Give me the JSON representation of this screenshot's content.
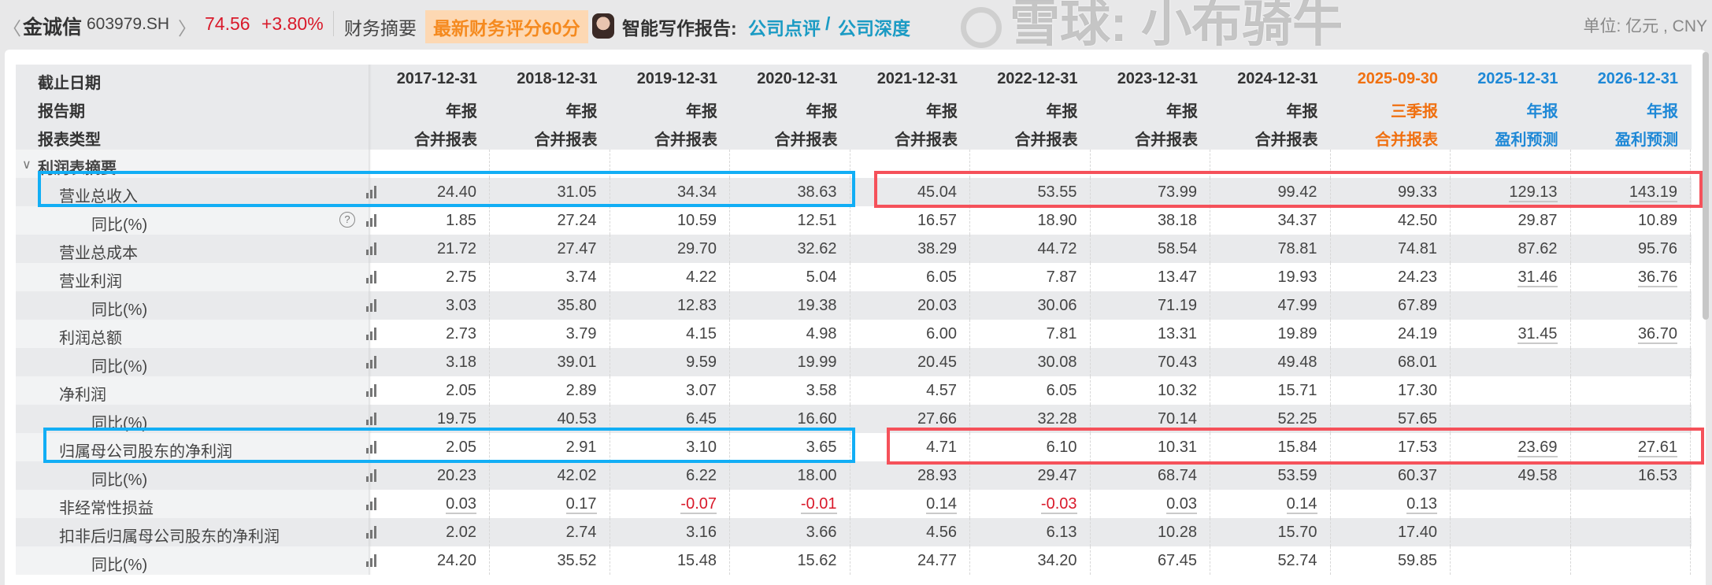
{
  "topbar": {
    "prev": "〈",
    "company": "金诚信",
    "code": "603979.SH",
    "next": "〉",
    "price": "74.56",
    "change": "+3.80%",
    "section": "财务摘要",
    "score_badge": "最新财务评分60分",
    "ai_label": "智能写作报告:",
    "link1": "公司点评",
    "sep": "/",
    "link2": "公司深度",
    "unit": "单位: 亿元 , CNY"
  },
  "colors": {
    "up": "#d9192a",
    "quarter": "#f07010",
    "forecast": "#1e88d6",
    "blue_box": "#12aef5",
    "red_box": "#f5515a"
  },
  "header": {
    "labels": [
      "截止日期",
      "报告期",
      "报表类型"
    ],
    "columns": [
      {
        "date": "2017-12-31",
        "period": "年报",
        "type": "合并报表",
        "kind": "actual"
      },
      {
        "date": "2018-12-31",
        "period": "年报",
        "type": "合并报表",
        "kind": "actual"
      },
      {
        "date": "2019-12-31",
        "period": "年报",
        "type": "合并报表",
        "kind": "actual"
      },
      {
        "date": "2020-12-31",
        "period": "年报",
        "type": "合并报表",
        "kind": "actual"
      },
      {
        "date": "2021-12-31",
        "period": "年报",
        "type": "合并报表",
        "kind": "actual"
      },
      {
        "date": "2022-12-31",
        "period": "年报",
        "type": "合并报表",
        "kind": "actual"
      },
      {
        "date": "2023-12-31",
        "period": "年报",
        "type": "合并报表",
        "kind": "actual"
      },
      {
        "date": "2024-12-31",
        "period": "年报",
        "type": "合并报表",
        "kind": "actual"
      },
      {
        "date": "2025-09-30",
        "period": "三季报",
        "type": "合并报表",
        "kind": "quarter"
      },
      {
        "date": "2025-12-31",
        "period": "年报",
        "type": "盈利预测",
        "kind": "forecast"
      },
      {
        "date": "2026-12-31",
        "period": "年报",
        "type": "盈利预测",
        "kind": "forecast"
      }
    ]
  },
  "section": {
    "caret": "∨",
    "title": "利润表摘要"
  },
  "rows": [
    {
      "label": "营业总收入",
      "sub": false,
      "values": [
        "24.40",
        "31.05",
        "34.34",
        "38.63",
        "45.04",
        "53.55",
        "73.99",
        "99.42",
        "99.33",
        "129.13",
        "143.19"
      ],
      "underline_forecast": true
    },
    {
      "label": "同比(%)",
      "sub": true,
      "help": true,
      "values": [
        "1.85",
        "27.24",
        "10.59",
        "12.51",
        "16.57",
        "18.90",
        "38.18",
        "34.37",
        "42.50",
        "29.87",
        "10.89"
      ]
    },
    {
      "label": "营业总成本",
      "sub": false,
      "values": [
        "21.72",
        "27.47",
        "29.70",
        "32.62",
        "38.29",
        "44.72",
        "58.54",
        "78.81",
        "74.81",
        "87.62",
        "95.76"
      ]
    },
    {
      "label": "营业利润",
      "sub": false,
      "values": [
        "2.75",
        "3.74",
        "4.22",
        "5.04",
        "6.05",
        "7.87",
        "13.47",
        "19.93",
        "24.23",
        "31.46",
        "36.76"
      ],
      "underline_forecast": true
    },
    {
      "label": "同比(%)",
      "sub": true,
      "values": [
        "3.03",
        "35.80",
        "12.83",
        "19.38",
        "20.03",
        "30.06",
        "71.19",
        "47.99",
        "67.89",
        "",
        ""
      ]
    },
    {
      "label": "利润总额",
      "sub": false,
      "values": [
        "2.73",
        "3.79",
        "4.15",
        "4.98",
        "6.00",
        "7.81",
        "13.31",
        "19.89",
        "24.19",
        "31.45",
        "36.70"
      ],
      "underline_forecast": true
    },
    {
      "label": "同比(%)",
      "sub": true,
      "values": [
        "3.18",
        "39.01",
        "9.59",
        "19.99",
        "20.45",
        "30.08",
        "70.43",
        "49.48",
        "68.01",
        "",
        ""
      ]
    },
    {
      "label": "净利润",
      "sub": false,
      "values": [
        "2.05",
        "2.89",
        "3.07",
        "3.58",
        "4.57",
        "6.05",
        "10.32",
        "15.71",
        "17.30",
        "",
        ""
      ]
    },
    {
      "label": "同比(%)",
      "sub": true,
      "values": [
        "19.75",
        "40.53",
        "6.45",
        "16.60",
        "27.66",
        "32.28",
        "70.14",
        "52.25",
        "57.65",
        "",
        ""
      ]
    },
    {
      "label": "归属母公司股东的净利润",
      "sub": false,
      "values": [
        "2.05",
        "2.91",
        "3.10",
        "3.65",
        "4.71",
        "6.10",
        "10.31",
        "15.84",
        "17.53",
        "23.69",
        "27.61"
      ],
      "underline_forecast": true
    },
    {
      "label": "同比(%)",
      "sub": true,
      "values": [
        "20.23",
        "42.02",
        "6.22",
        "18.00",
        "28.93",
        "29.47",
        "68.74",
        "53.59",
        "60.37",
        "49.58",
        "16.53"
      ]
    },
    {
      "label": "非经常性损益",
      "sub": false,
      "values": [
        "0.03",
        "0.17",
        "-0.07",
        "-0.01",
        "0.14",
        "-0.03",
        "0.03",
        "0.14",
        "0.13",
        "",
        ""
      ],
      "underline_all": true
    },
    {
      "label": "扣非后归属母公司股东的净利润",
      "sub": false,
      "values": [
        "2.02",
        "2.74",
        "3.16",
        "3.66",
        "4.56",
        "6.13",
        "10.28",
        "15.70",
        "17.40",
        "",
        ""
      ]
    },
    {
      "label": "同比(%)",
      "sub": true,
      "values": [
        "24.20",
        "35.52",
        "15.48",
        "15.62",
        "24.77",
        "34.20",
        "67.45",
        "52.74",
        "59.85",
        "",
        ""
      ]
    }
  ],
  "watermark": "雪球: 小布骑牛"
}
